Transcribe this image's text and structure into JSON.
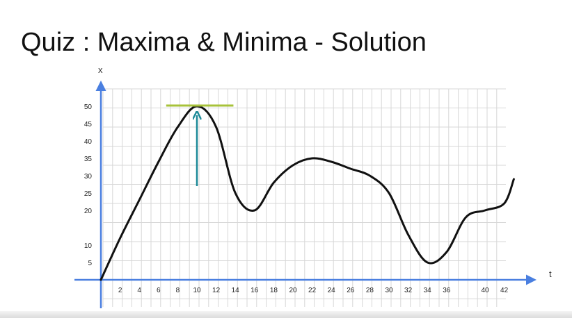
{
  "slide": {
    "title": "Quiz : Maxima & Minima - Solution"
  },
  "colors": {
    "axis": "#4a7fe0",
    "grid": "#d7d7d7",
    "curve": "#111111",
    "tangent": "#a7c23a",
    "arrow": "#1d8a98"
  },
  "chart_data": {
    "type": "line",
    "title": "Quiz : Maxima & Minima - Solution",
    "xlabel": "t",
    "ylabel": "x",
    "xlim": [
      0,
      43
    ],
    "ylim": [
      0,
      50
    ],
    "x_ticks": [
      "2",
      "4",
      "6",
      "8",
      "10",
      "12",
      "14",
      "16",
      "18",
      "20",
      "22",
      "24",
      "26",
      "28",
      "30",
      "32",
      "34",
      "36",
      "40",
      "42"
    ],
    "y_ticks": [
      "5",
      "10",
      "20",
      "25",
      "30",
      "35",
      "40",
      "45",
      "50"
    ],
    "grid": true,
    "series": [
      {
        "x": [
          0,
          2,
          4,
          6,
          8,
          10,
          12,
          14,
          16,
          18,
          20,
          22,
          24,
          26,
          28,
          30,
          32,
          34,
          36,
          38,
          40,
          42,
          43
        ],
        "y": [
          0,
          12,
          23,
          34,
          44,
          50,
          44,
          25,
          20,
          28,
          33,
          35,
          34,
          32,
          30,
          25,
          13,
          5,
          8,
          18,
          20,
          22,
          29
        ]
      }
    ],
    "annotations": [
      {
        "type": "tangent-line",
        "at_x": 10,
        "y": 50,
        "x_from": 6.8,
        "x_to": 13.8
      },
      {
        "type": "arrow",
        "x": 10,
        "y_from": 30,
        "y_to": 49
      }
    ]
  }
}
